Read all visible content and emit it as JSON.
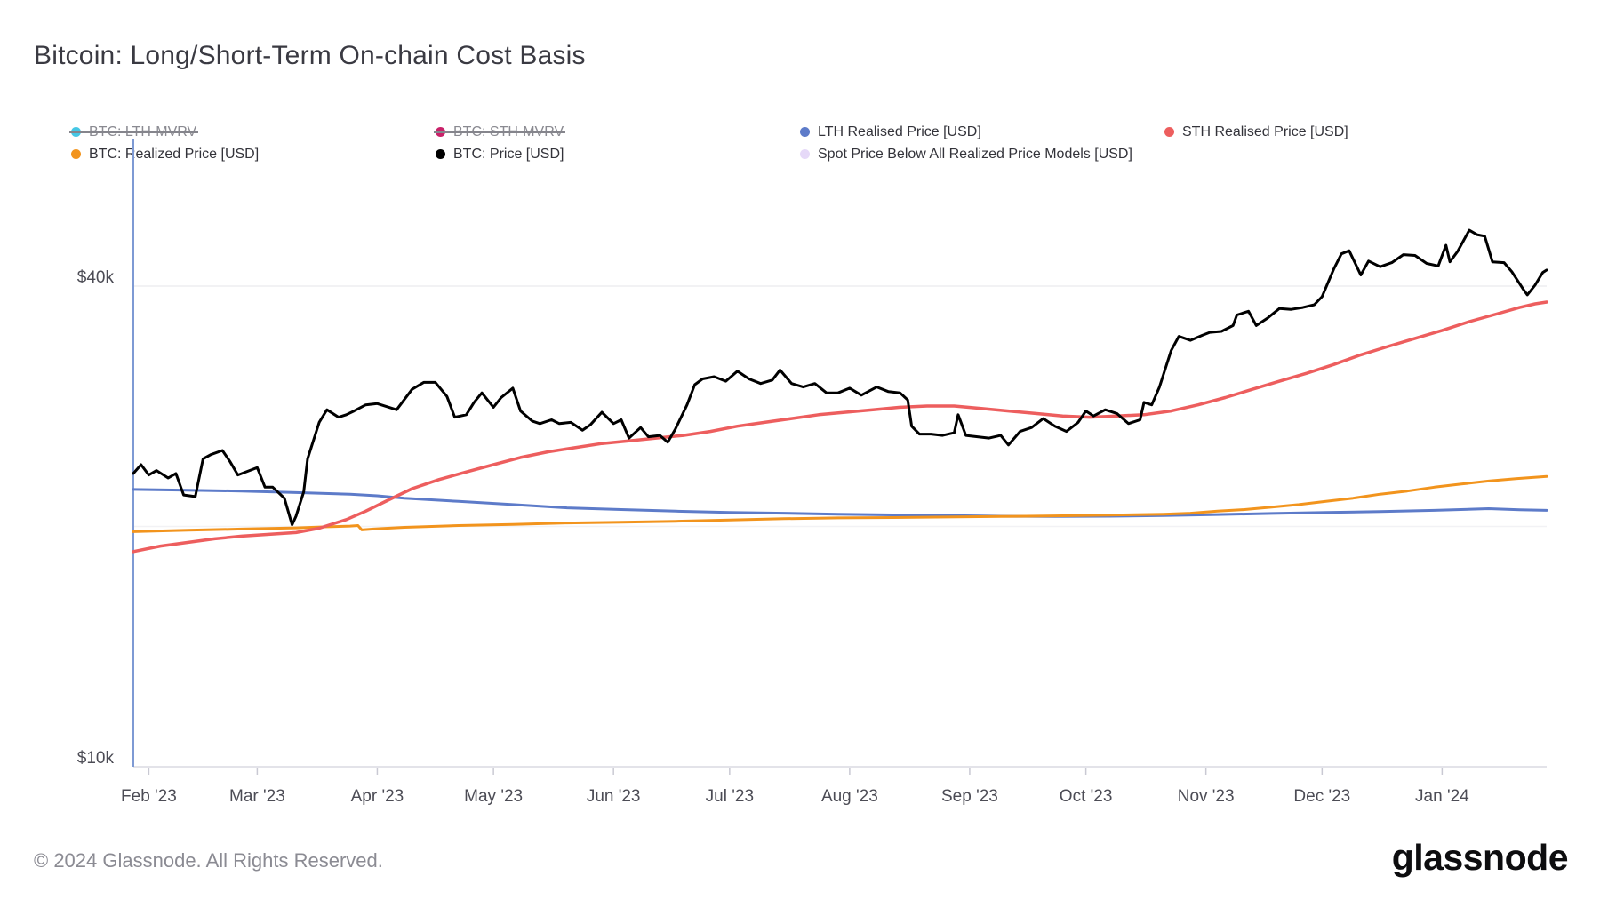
{
  "title": "Bitcoin: Long/Short-Term On-chain Cost Basis",
  "footer": {
    "copyright": "© 2024 Glassnode. All Rights Reserved.",
    "brand": "glassnode"
  },
  "chart_data": {
    "type": "line",
    "title": "Bitcoin: Long/Short-Term On-chain Cost Basis",
    "y_scale": "log",
    "value_unit": "USD thousands",
    "x_unit": "days from 2023-01-28 (plot left edge)",
    "axis_colors": {
      "gridline": "#ededf1",
      "minor_gridline": "#f2f2f5",
      "axis_line": "#e3e3e9",
      "tick": "#c9c9d3",
      "left_guide_line": "#7e9ad4",
      "label_text": "#4c4c55"
    },
    "y_axis": {
      "ticks": [
        {
          "label": "$40k",
          "value": 40
        },
        {
          "label": "$10k",
          "value": 10
        }
      ],
      "unlabeled_gridline_values": [
        20
      ],
      "range": [
        10,
        50
      ]
    },
    "x_axis": {
      "ticks": [
        {
          "label": "Feb '23",
          "day": 4
        },
        {
          "label": "Mar '23",
          "day": 32
        },
        {
          "label": "Apr '23",
          "day": 63
        },
        {
          "label": "May '23",
          "day": 93
        },
        {
          "label": "Jun '23",
          "day": 124
        },
        {
          "label": "Jul '23",
          "day": 154
        },
        {
          "label": "Aug '23",
          "day": 185
        },
        {
          "label": "Sep '23",
          "day": 216
        },
        {
          "label": "Oct '23",
          "day": 246
        },
        {
          "label": "Nov '23",
          "day": 277
        },
        {
          "label": "Dec '23",
          "day": 307
        },
        {
          "label": "Jan '24",
          "day": 338
        }
      ],
      "range_days": [
        0,
        365
      ]
    },
    "series": [
      {
        "name": "BTC: LTH-MVRV",
        "color": "#45c7e5",
        "enabled": false,
        "legend_row": 0,
        "z": 0,
        "line_width": 3,
        "points": []
      },
      {
        "name": "BTC: STH-MVRV",
        "color": "#c92169",
        "enabled": false,
        "legend_row": 0,
        "z": 0,
        "line_width": 3,
        "points": []
      },
      {
        "name": "LTH Realised Price [USD]",
        "color": "#5d7bc9",
        "enabled": true,
        "legend_row": 0,
        "z": 1,
        "line_width": 3,
        "points": [
          [
            0,
            22.25
          ],
          [
            14,
            22.2
          ],
          [
            28,
            22.15
          ],
          [
            42,
            22.05
          ],
          [
            56,
            21.95
          ],
          [
            63,
            21.85
          ],
          [
            70,
            21.7
          ],
          [
            84,
            21.5
          ],
          [
            98,
            21.3
          ],
          [
            112,
            21.1
          ],
          [
            126,
            21.0
          ],
          [
            140,
            20.9
          ],
          [
            154,
            20.82
          ],
          [
            168,
            20.78
          ],
          [
            182,
            20.72
          ],
          [
            196,
            20.68
          ],
          [
            210,
            20.64
          ],
          [
            224,
            20.6
          ],
          [
            238,
            20.58
          ],
          [
            252,
            20.6
          ],
          [
            266,
            20.64
          ],
          [
            280,
            20.7
          ],
          [
            294,
            20.76
          ],
          [
            308,
            20.82
          ],
          [
            322,
            20.88
          ],
          [
            336,
            20.95
          ],
          [
            350,
            21.05
          ],
          [
            358,
            20.98
          ],
          [
            365,
            20.95
          ]
        ]
      },
      {
        "name": "STH Realised Price [USD]",
        "color": "#ed5e5e",
        "enabled": true,
        "legend_row": 0,
        "z": 3,
        "line_width": 3.5,
        "points": [
          [
            0,
            18.6
          ],
          [
            7,
            18.9
          ],
          [
            14,
            19.1
          ],
          [
            21,
            19.3
          ],
          [
            28,
            19.45
          ],
          [
            35,
            19.55
          ],
          [
            42,
            19.65
          ],
          [
            48,
            19.9
          ],
          [
            55,
            20.4
          ],
          [
            60,
            20.9
          ],
          [
            66,
            21.6
          ],
          [
            72,
            22.3
          ],
          [
            79,
            22.9
          ],
          [
            86,
            23.4
          ],
          [
            93,
            23.9
          ],
          [
            100,
            24.4
          ],
          [
            107,
            24.8
          ],
          [
            114,
            25.1
          ],
          [
            121,
            25.4
          ],
          [
            128,
            25.6
          ],
          [
            135,
            25.8
          ],
          [
            142,
            26.0
          ],
          [
            149,
            26.3
          ],
          [
            156,
            26.7
          ],
          [
            163,
            27.0
          ],
          [
            170,
            27.3
          ],
          [
            177,
            27.6
          ],
          [
            184,
            27.8
          ],
          [
            191,
            28.0
          ],
          [
            198,
            28.2
          ],
          [
            205,
            28.3
          ],
          [
            212,
            28.3
          ],
          [
            219,
            28.1
          ],
          [
            226,
            27.9
          ],
          [
            233,
            27.7
          ],
          [
            240,
            27.5
          ],
          [
            247,
            27.4
          ],
          [
            254,
            27.5
          ],
          [
            261,
            27.6
          ],
          [
            268,
            27.9
          ],
          [
            275,
            28.4
          ],
          [
            282,
            29.0
          ],
          [
            289,
            29.7
          ],
          [
            296,
            30.4
          ],
          [
            303,
            31.1
          ],
          [
            310,
            31.9
          ],
          [
            317,
            32.8
          ],
          [
            324,
            33.6
          ],
          [
            331,
            34.4
          ],
          [
            338,
            35.2
          ],
          [
            345,
            36.1
          ],
          [
            352,
            36.9
          ],
          [
            358,
            37.6
          ],
          [
            362,
            38.0
          ],
          [
            365,
            38.2
          ]
        ]
      },
      {
        "name": "BTC: Realized Price [USD]",
        "color": "#f2941d",
        "enabled": true,
        "legend_row": 1,
        "z": 2,
        "line_width": 3,
        "points": [
          [
            0,
            19.7
          ],
          [
            14,
            19.78
          ],
          [
            28,
            19.85
          ],
          [
            42,
            19.92
          ],
          [
            50,
            19.98
          ],
          [
            56,
            20.02
          ],
          [
            58,
            20.05
          ],
          [
            59,
            19.8
          ],
          [
            62,
            19.85
          ],
          [
            70,
            19.95
          ],
          [
            84,
            20.05
          ],
          [
            98,
            20.12
          ],
          [
            112,
            20.2
          ],
          [
            126,
            20.25
          ],
          [
            140,
            20.3
          ],
          [
            154,
            20.38
          ],
          [
            168,
            20.45
          ],
          [
            182,
            20.5
          ],
          [
            196,
            20.52
          ],
          [
            210,
            20.55
          ],
          [
            224,
            20.58
          ],
          [
            238,
            20.62
          ],
          [
            252,
            20.66
          ],
          [
            266,
            20.72
          ],
          [
            273,
            20.78
          ],
          [
            280,
            20.9
          ],
          [
            287,
            21.0
          ],
          [
            294,
            21.15
          ],
          [
            301,
            21.3
          ],
          [
            308,
            21.5
          ],
          [
            315,
            21.7
          ],
          [
            322,
            21.95
          ],
          [
            329,
            22.15
          ],
          [
            336,
            22.4
          ],
          [
            343,
            22.6
          ],
          [
            350,
            22.8
          ],
          [
            357,
            22.95
          ],
          [
            365,
            23.1
          ]
        ]
      },
      {
        "name": "BTC: Price [USD]",
        "color": "#000000",
        "enabled": true,
        "legend_row": 1,
        "z": 4,
        "line_width": 3,
        "points": [
          [
            0,
            23.3
          ],
          [
            2,
            23.9
          ],
          [
            4,
            23.2
          ],
          [
            6,
            23.5
          ],
          [
            9,
            23.0
          ],
          [
            11,
            23.3
          ],
          [
            13,
            21.9
          ],
          [
            16,
            21.8
          ],
          [
            18,
            24.3
          ],
          [
            20,
            24.6
          ],
          [
            23,
            24.9
          ],
          [
            25,
            24.1
          ],
          [
            27,
            23.2
          ],
          [
            30,
            23.5
          ],
          [
            32,
            23.7
          ],
          [
            34,
            22.4
          ],
          [
            36,
            22.4
          ],
          [
            39,
            21.7
          ],
          [
            41,
            20.1
          ],
          [
            42,
            20.6
          ],
          [
            44,
            22.1
          ],
          [
            45,
            24.3
          ],
          [
            48,
            27.0
          ],
          [
            50,
            28.0
          ],
          [
            53,
            27.4
          ],
          [
            55,
            27.6
          ],
          [
            57,
            27.9
          ],
          [
            60,
            28.4
          ],
          [
            63,
            28.5
          ],
          [
            66,
            28.2
          ],
          [
            68,
            28.0
          ],
          [
            72,
            29.7
          ],
          [
            75,
            30.3
          ],
          [
            78,
            30.3
          ],
          [
            81,
            29.1
          ],
          [
            83,
            27.4
          ],
          [
            86,
            27.6
          ],
          [
            88,
            28.6
          ],
          [
            90,
            29.4
          ],
          [
            93,
            28.2
          ],
          [
            95,
            29.0
          ],
          [
            98,
            29.8
          ],
          [
            100,
            27.9
          ],
          [
            103,
            27.1
          ],
          [
            105,
            26.9
          ],
          [
            108,
            27.2
          ],
          [
            110,
            26.9
          ],
          [
            113,
            27.0
          ],
          [
            116,
            26.4
          ],
          [
            118,
            26.8
          ],
          [
            121,
            27.8
          ],
          [
            124,
            26.9
          ],
          [
            126,
            27.2
          ],
          [
            128,
            25.8
          ],
          [
            131,
            26.6
          ],
          [
            133,
            25.9
          ],
          [
            136,
            26.0
          ],
          [
            138,
            25.5
          ],
          [
            140,
            26.5
          ],
          [
            143,
            28.4
          ],
          [
            145,
            30.1
          ],
          [
            147,
            30.6
          ],
          [
            150,
            30.8
          ],
          [
            153,
            30.4
          ],
          [
            156,
            31.3
          ],
          [
            159,
            30.6
          ],
          [
            162,
            30.2
          ],
          [
            165,
            30.5
          ],
          [
            167,
            31.4
          ],
          [
            170,
            30.2
          ],
          [
            173,
            29.9
          ],
          [
            176,
            30.2
          ],
          [
            179,
            29.4
          ],
          [
            182,
            29.4
          ],
          [
            185,
            29.8
          ],
          [
            188,
            29.2
          ],
          [
            192,
            29.9
          ],
          [
            195,
            29.5
          ],
          [
            198,
            29.4
          ],
          [
            200,
            28.8
          ],
          [
            201,
            26.7
          ],
          [
            203,
            26.1
          ],
          [
            206,
            26.1
          ],
          [
            209,
            26.0
          ],
          [
            212,
            26.2
          ],
          [
            213,
            27.6
          ],
          [
            215,
            26.0
          ],
          [
            218,
            25.9
          ],
          [
            221,
            25.8
          ],
          [
            224,
            26.0
          ],
          [
            226,
            25.3
          ],
          [
            229,
            26.3
          ],
          [
            232,
            26.6
          ],
          [
            235,
            27.3
          ],
          [
            238,
            26.7
          ],
          [
            241,
            26.3
          ],
          [
            244,
            27.0
          ],
          [
            246,
            27.9
          ],
          [
            248,
            27.5
          ],
          [
            251,
            28.0
          ],
          [
            254,
            27.7
          ],
          [
            257,
            26.9
          ],
          [
            260,
            27.2
          ],
          [
            261,
            28.6
          ],
          [
            263,
            28.4
          ],
          [
            265,
            29.9
          ],
          [
            268,
            33.2
          ],
          [
            270,
            34.6
          ],
          [
            273,
            34.2
          ],
          [
            276,
            34.7
          ],
          [
            278,
            35.0
          ],
          [
            281,
            35.1
          ],
          [
            284,
            35.7
          ],
          [
            285,
            36.8
          ],
          [
            288,
            37.2
          ],
          [
            290,
            35.7
          ],
          [
            293,
            36.5
          ],
          [
            296,
            37.5
          ],
          [
            299,
            37.4
          ],
          [
            302,
            37.6
          ],
          [
            305,
            37.9
          ],
          [
            307,
            38.8
          ],
          [
            310,
            42.0
          ],
          [
            312,
            43.9
          ],
          [
            314,
            44.3
          ],
          [
            317,
            41.3
          ],
          [
            319,
            43.0
          ],
          [
            322,
            42.3
          ],
          [
            325,
            42.8
          ],
          [
            328,
            43.8
          ],
          [
            331,
            43.7
          ],
          [
            334,
            42.7
          ],
          [
            337,
            42.4
          ],
          [
            339,
            45.0
          ],
          [
            340,
            42.9
          ],
          [
            342,
            44.2
          ],
          [
            345,
            47.0
          ],
          [
            347,
            46.4
          ],
          [
            349,
            46.2
          ],
          [
            351,
            42.9
          ],
          [
            354,
            42.8
          ],
          [
            356,
            41.7
          ],
          [
            359,
            39.6
          ],
          [
            360,
            39.0
          ],
          [
            362,
            40.1
          ],
          [
            364,
            41.6
          ],
          [
            365,
            41.9
          ]
        ]
      },
      {
        "name": "Spot Price Below All Realized Price Models [USD]",
        "color": "#e6d9f8",
        "enabled": true,
        "legend_row": 1,
        "z": 0,
        "line_width": 3,
        "points": []
      }
    ]
  }
}
